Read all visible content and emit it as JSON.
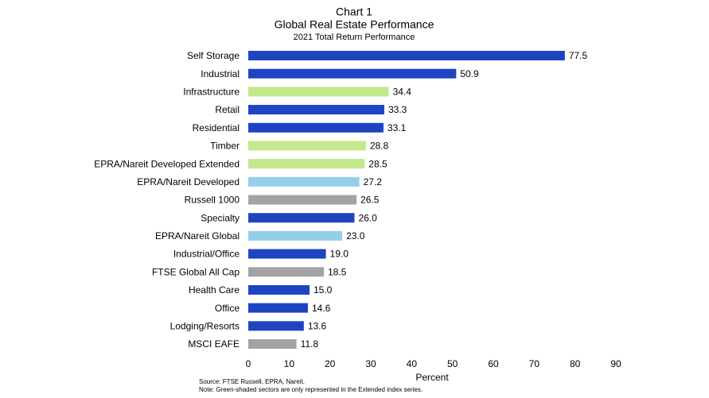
{
  "chart_data": {
    "type": "hbar",
    "title": "Chart 1",
    "subtitle": "Global Real Estate Performance",
    "subtitle2": "2021 Total Return Performance",
    "categories": [
      "Self Storage",
      "Industrial",
      "Infrastructure",
      "Retail",
      "Residential",
      "Timber",
      "EPRA/Nareit Developed Extended",
      "EPRA/Nareit Developed",
      "Russell 1000",
      "Specialty",
      "EPRA/Nareit Global",
      "Industrial/Office",
      "FTSE Global All Cap",
      "Health Care",
      "Office",
      "Lodging/Resorts",
      "MSCI EAFE"
    ],
    "values": [
      77.5,
      50.9,
      34.4,
      33.3,
      33.1,
      28.8,
      28.5,
      27.2,
      26.5,
      26,
      23,
      19,
      18.5,
      15,
      14.6,
      13.6,
      11.8
    ],
    "value_labels": [
      "77.5",
      "50.9",
      "34.4",
      "33.3",
      "33.1",
      "28.8",
      "28.5",
      "27.2",
      "26.5",
      "26.0",
      "23.0",
      "19.0",
      "18.5",
      "15.0",
      "14.6",
      "13.6",
      "11.8"
    ],
    "colors": [
      "#1f44c2",
      "#1f44c2",
      "#c4e88c",
      "#1f44c2",
      "#1f44c2",
      "#c4e88c",
      "#c4e88c",
      "#94cfea",
      "#a3a3a3",
      "#1f44c2",
      "#94cfea",
      "#1f44c2",
      "#a3a3a3",
      "#1f44c2",
      "#1f44c2",
      "#1f44c2",
      "#a3a3a3"
    ],
    "xlim": [
      0,
      90
    ],
    "xticks": [
      0,
      10,
      20,
      30,
      40,
      50,
      60,
      70,
      80,
      90
    ],
    "xlabel": "Percent",
    "notes": [
      "Source: FTSE Russell, EPRA, Nareit.",
      "Note: Green-shaded sectors are only represented in the Extended index series."
    ],
    "grid": false
  }
}
